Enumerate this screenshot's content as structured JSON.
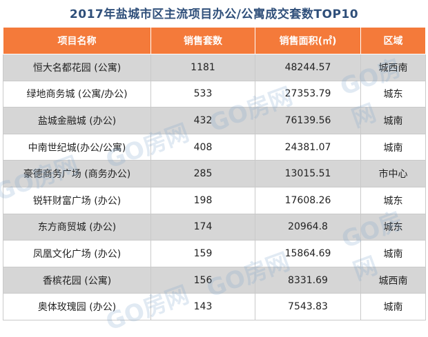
{
  "title": "2017年盐城市区主流项目办公/公寓成交套数TOP10",
  "columns": [
    "项目名称",
    "销售套数",
    "销售面积(㎡)",
    "区域"
  ],
  "rows": [
    {
      "name": "恒大名都花园 (公寓)",
      "units": "1181",
      "area": "48244.57",
      "region": "城西南"
    },
    {
      "name": "绿地商务城 (公寓/办公)",
      "units": "533",
      "area": "27353.79",
      "region": "城东"
    },
    {
      "name": "盐城金融城 (办公)",
      "units": "432",
      "area": "76139.56",
      "region": "城南"
    },
    {
      "name": "中南世纪城(办公/公寓)",
      "units": "408",
      "area": "24381.07",
      "region": "城南"
    },
    {
      "name": "豪德商务广场 (商务办公)",
      "units": "285",
      "area": "13015.51",
      "region": "市中心"
    },
    {
      "name": "锐轩财富广场 (办公)",
      "units": "198",
      "area": "17608.26",
      "region": "城东"
    },
    {
      "name": "东方商贸城 (办公)",
      "units": "174",
      "area": "20964.8",
      "region": "城东"
    },
    {
      "name": "凤凰文化广场 (办公)",
      "units": "159",
      "area": "15864.69",
      "region": "城南"
    },
    {
      "name": "香槟花园 (公寓)",
      "units": "156",
      "area": "8331.69",
      "region": "城西南"
    },
    {
      "name": "奥体玫瑰园 (办公)",
      "units": "143",
      "area": "7543.83",
      "region": "城南"
    }
  ],
  "watermark": "GO房网",
  "colors": {
    "header_bg": "#f47a3a",
    "title": "#2f4f7a",
    "stripe": "#d6d6d6"
  }
}
